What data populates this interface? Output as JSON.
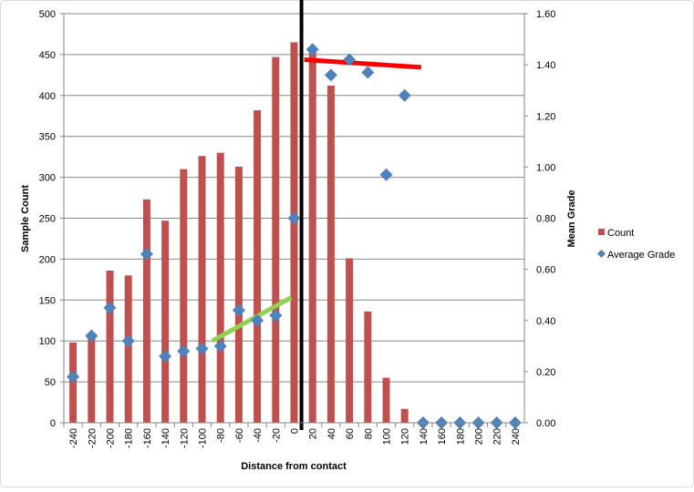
{
  "chart_data": {
    "type": "bar+scatter",
    "title": "",
    "xlabel": "Distance  from contact",
    "ylabel": "Sample Count",
    "y2label": "Mean Grade",
    "categories": [
      -240,
      -220,
      -200,
      -180,
      -160,
      -140,
      -120,
      -100,
      -80,
      -60,
      -40,
      -20,
      0,
      20,
      40,
      60,
      80,
      100,
      120,
      140,
      160,
      180,
      200,
      220,
      240
    ],
    "ylim": [
      0,
      500
    ],
    "yticks": [
      0,
      50,
      100,
      150,
      200,
      250,
      300,
      350,
      400,
      450,
      500
    ],
    "y2lim": [
      0,
      1.6
    ],
    "y2ticks": [
      "0.00",
      "0.20",
      "0.40",
      "0.60",
      "0.80",
      "1.00",
      "1.20",
      "1.40",
      "1.60"
    ],
    "grid": true,
    "legend_position": "right",
    "series": [
      {
        "name": "Count",
        "type": "bar",
        "axis": "left",
        "color": "#c0504d",
        "values": [
          98,
          103,
          186,
          180,
          273,
          247,
          310,
          326,
          330,
          313,
          382,
          447,
          465,
          455,
          412,
          201,
          136,
          55,
          17,
          0,
          0,
          0,
          0,
          0,
          0
        ]
      },
      {
        "name": "Average Grade",
        "type": "scatter",
        "axis": "right",
        "marker": "diamond",
        "color": "#4f81bd",
        "values": [
          0.18,
          0.34,
          0.45,
          0.32,
          0.66,
          0.26,
          0.28,
          0.29,
          0.3,
          0.44,
          0.4,
          0.42,
          0.8,
          1.46,
          1.36,
          1.42,
          1.37,
          0.97,
          1.28,
          0,
          0,
          0,
          0,
          0,
          0
        ]
      }
    ],
    "annotations": [
      {
        "kind": "vertical-line",
        "x": 8,
        "color": "#000000"
      },
      {
        "kind": "trend-line",
        "color": "#92d050",
        "x": [
          -89,
          -3
        ],
        "y2": [
          0.32,
          0.49
        ]
      },
      {
        "kind": "trend-line",
        "color": "#ff0000",
        "x": [
          11,
          138
        ],
        "y2": [
          1.42,
          1.39
        ]
      }
    ]
  }
}
